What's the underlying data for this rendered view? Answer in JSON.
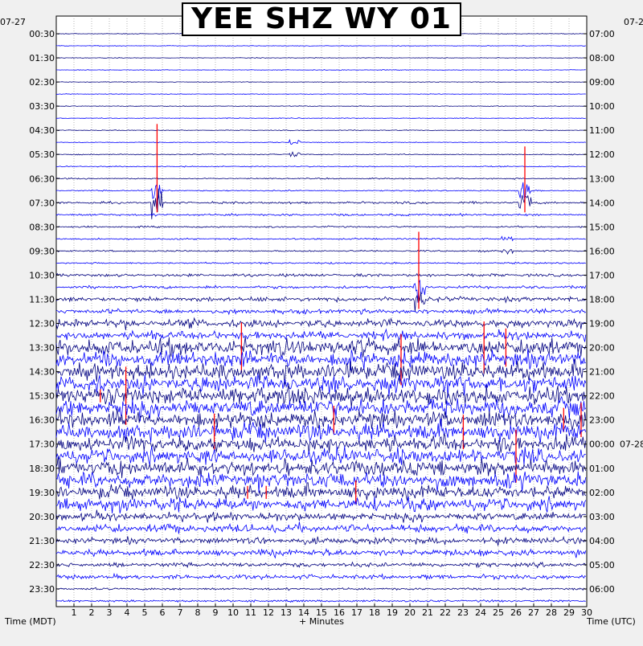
{
  "chart_data": {
    "type": "line",
    "title": "YEE SHZ WY 01",
    "xlabel": "+ Minutes",
    "left_axis_title": "Time (MDT)",
    "right_axis_title": "Time (UTC)",
    "left_date": "07-27",
    "right_date_top": "07-2",
    "right_date_mid": "07-28",
    "xlim": [
      0,
      30
    ],
    "x_ticks": [
      "1",
      "2",
      "3",
      "4",
      "5",
      "6",
      "7",
      "8",
      "9",
      "10",
      "11",
      "12",
      "13",
      "14",
      "15",
      "16",
      "17",
      "18",
      "19",
      "20",
      "21",
      "22",
      "23",
      "24",
      "25",
      "26",
      "27",
      "28",
      "29",
      "30"
    ],
    "left_ticks": [
      "00:30",
      "01:30",
      "02:30",
      "03:30",
      "04:30",
      "05:30",
      "06:30",
      "07:30",
      "08:30",
      "09:30",
      "10:30",
      "11:30",
      "12:30",
      "13:30",
      "14:30",
      "15:30",
      "16:30",
      "17:30",
      "18:30",
      "19:30",
      "20:30",
      "21:30",
      "22:30",
      "23:30"
    ],
    "right_ticks": [
      "07:00",
      "08:00",
      "09:00",
      "10:00",
      "11:00",
      "12:00",
      "13:00",
      "14:00",
      "15:00",
      "16:00",
      "17:00",
      "18:00",
      "19:00",
      "20:00",
      "21:00",
      "22:00",
      "23:00",
      "00:00",
      "01:00",
      "02:00",
      "03:00",
      "04:00",
      "05:00",
      "06:00"
    ],
    "traces_per_hour": 2,
    "trace_colors": [
      "#000080",
      "#0000ff"
    ],
    "clip_color": "#ff0000",
    "hourly_activity": [
      0.4,
      0.35,
      0.35,
      0.4,
      0.45,
      0.6,
      0.7,
      1.2,
      0.9,
      0.9,
      1.6,
      2.6,
      4.5,
      9.0,
      9.5,
      9.5,
      9.0,
      8.0,
      8.5,
      7.0,
      4.5,
      3.5,
      2.5,
      1.2
    ],
    "events": [
      {
        "minute": 5.7,
        "hour": "07:30",
        "amplitude": 3.5
      },
      {
        "minute": 26.5,
        "hour": "07:30",
        "amplitude": 2.5
      },
      {
        "minute": 13.5,
        "hour": "05:30",
        "amplitude": 0.8
      },
      {
        "minute": 25.5,
        "hour": "09:30",
        "amplitude": 0.8
      },
      {
        "minute": 20.5,
        "hour": "11:30",
        "amplitude": 3.0
      }
    ],
    "grid": true
  }
}
